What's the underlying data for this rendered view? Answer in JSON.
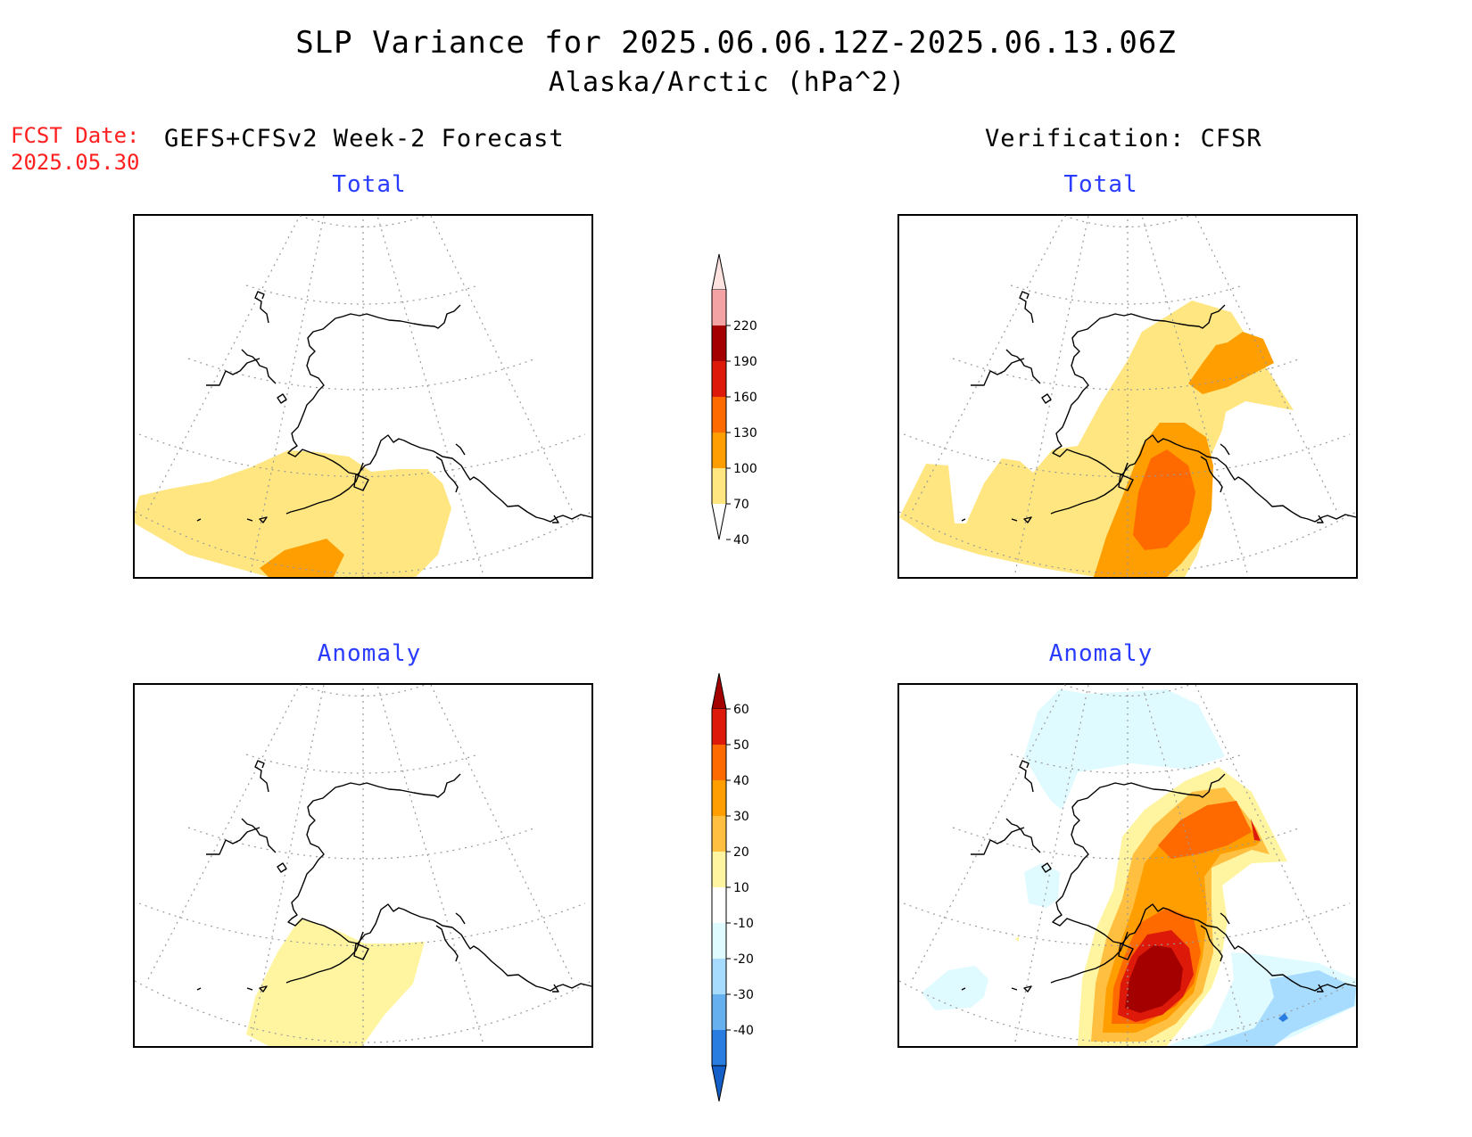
{
  "header": {
    "title": "SLP Variance for 2025.06.06.12Z-2025.06.13.06Z",
    "subtitle": "Alaska/Arctic (hPa^2)",
    "fcst_label": "FCST Date:",
    "fcst_date": "2025.05.30",
    "left_heading": "GEFS+CFSv2 Week-2 Forecast",
    "right_heading": "Verification: CFSR"
  },
  "panels": {
    "top_left_title": "Total",
    "top_right_title": "Total",
    "bottom_left_title": "Anomaly",
    "bottom_right_title": "Anomaly"
  },
  "colorbars": {
    "total": {
      "labels": [
        "220",
        "190",
        "160",
        "130",
        "100",
        "70",
        "40"
      ],
      "colors": [
        "#fde2e0",
        "#f3a3a3",
        "#a50000",
        "#dd1a0a",
        "#ff6a00",
        "#ff9e00",
        "#ffe680"
      ]
    },
    "anomaly": {
      "labels": [
        "60",
        "50",
        "40",
        "30",
        "20",
        "10",
        "-10",
        "-20",
        "-30",
        "-40"
      ],
      "colors": [
        "#a50000",
        "#dd1a0a",
        "#ff6a00",
        "#ff9e00",
        "#ffbf40",
        "#fff5a0",
        "#ffffff",
        "#e0fbff",
        "#a8dcff",
        "#66b0f0",
        "#2a7de0",
        "#1560c8"
      ]
    }
  }
}
